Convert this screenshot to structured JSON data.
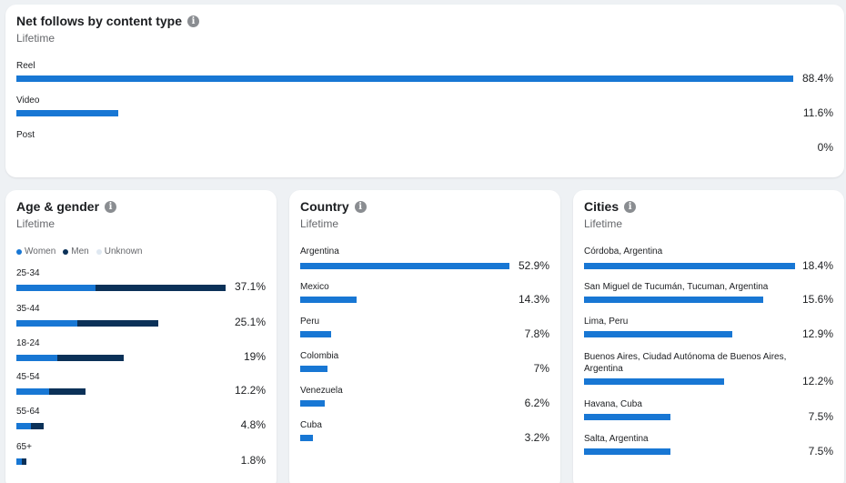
{
  "colors": {
    "women": "#1877d4",
    "men": "#0b3158",
    "unknown": "#dfe8f1",
    "bar": "#1877d4"
  },
  "follows": {
    "title": "Net follows by content type",
    "info_icon": "info-icon",
    "subtitle": "Lifetime",
    "items": [
      {
        "label": "Reel",
        "value": "88.4%",
        "pct": 88.4
      },
      {
        "label": "Video",
        "value": "11.6%",
        "pct": 11.6
      },
      {
        "label": "Post",
        "value": "0%",
        "pct": 0
      }
    ]
  },
  "age": {
    "title": "Age & gender",
    "info_icon": "info-icon",
    "subtitle": "Lifetime",
    "legend": {
      "women": "Women",
      "men": "Men",
      "unknown": "Unknown"
    },
    "items": [
      {
        "label": "25-34",
        "value": "37.1%",
        "pct": 37.1,
        "women_frac": 0.38
      },
      {
        "label": "35-44",
        "value": "25.1%",
        "pct": 25.1,
        "women_frac": 0.43
      },
      {
        "label": "18-24",
        "value": "19%",
        "pct": 19,
        "women_frac": 0.38
      },
      {
        "label": "45-54",
        "value": "12.2%",
        "pct": 12.2,
        "women_frac": 0.48
      },
      {
        "label": "55-64",
        "value": "4.8%",
        "pct": 4.8,
        "women_frac": 0.53
      },
      {
        "label": "65+",
        "value": "1.8%",
        "pct": 1.8,
        "women_frac": 0.5
      }
    ]
  },
  "country": {
    "title": "Country",
    "info_icon": "info-icon",
    "subtitle": "Lifetime",
    "items": [
      {
        "label": "Argentina",
        "value": "52.9%",
        "pct": 52.9
      },
      {
        "label": "Mexico",
        "value": "14.3%",
        "pct": 14.3
      },
      {
        "label": "Peru",
        "value": "7.8%",
        "pct": 7.8
      },
      {
        "label": "Colombia",
        "value": "7%",
        "pct": 7
      },
      {
        "label": "Venezuela",
        "value": "6.2%",
        "pct": 6.2
      },
      {
        "label": "Cuba",
        "value": "3.2%",
        "pct": 3.2
      }
    ]
  },
  "cities": {
    "title": "Cities",
    "info_icon": "info-icon",
    "subtitle": "Lifetime",
    "items": [
      {
        "label": "Córdoba, Argentina",
        "value": "18.4%",
        "pct": 18.4
      },
      {
        "label": "San Miguel de Tucumán, Tucuman, Argentina",
        "value": "15.6%",
        "pct": 15.6
      },
      {
        "label": "Lima, Peru",
        "value": "12.9%",
        "pct": 12.9
      },
      {
        "label": "Buenos Aires, Ciudad Autónoma de Buenos Aires, Argentina",
        "value": "12.2%",
        "pct": 12.2
      },
      {
        "label": "Havana, Cuba",
        "value": "7.5%",
        "pct": 7.5
      },
      {
        "label": "Salta, Argentina",
        "value": "7.5%",
        "pct": 7.5
      }
    ]
  }
}
